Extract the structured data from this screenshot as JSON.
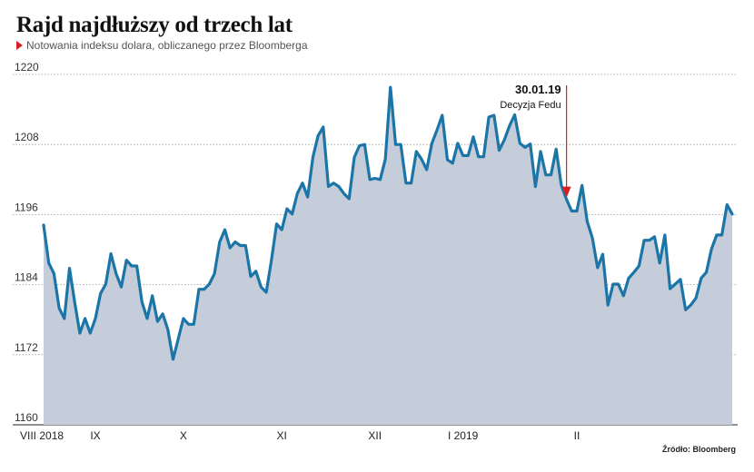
{
  "header": {
    "title": "Rajd najdłuższy od trzech lat",
    "subtitle": "Notowania indeksu dolara, obliczanego przez Bloomberga"
  },
  "source": "Źródło: Bloomberg",
  "colors": {
    "line": "#1b75a6",
    "area": "#c5ccda",
    "marker": "#d81e1e",
    "grid": "#9a9a9a"
  },
  "annotation": {
    "date": "30.01.19",
    "label": "Decyzja Fedu",
    "index": 101
  },
  "chart_data": {
    "type": "area",
    "title": "Rajd najdłuższy od trzech lat",
    "subtitle": "Notowania indeksu dolara, obliczanego przez Bloomberga",
    "ylim": [
      1160,
      1220
    ],
    "yticks": [
      1160,
      1172,
      1184,
      1196,
      1208,
      1220
    ],
    "grid": true,
    "x_ticks": [
      {
        "label": "VIII 2018",
        "index": 0
      },
      {
        "label": "IX",
        "index": 10
      },
      {
        "label": "X",
        "index": 27
      },
      {
        "label": "XI",
        "index": 46
      },
      {
        "label": "XII",
        "index": 64
      },
      {
        "label": "I 2019",
        "index": 81
      },
      {
        "label": "II",
        "index": 103
      }
    ],
    "series": [
      {
        "values": [
          1194.2,
          1187.7,
          1185.9,
          1180.0,
          1178.2,
          1186.8,
          1181.0,
          1175.7,
          1178.2,
          1175.7,
          1178.2,
          1182.5,
          1184.1,
          1189.3,
          1185.9,
          1183.6,
          1188.2,
          1187.2,
          1187.2,
          1181.0,
          1178.2,
          1182.1,
          1177.7,
          1179.0,
          1176.3,
          1171.2,
          1174.7,
          1178.2,
          1177.2,
          1177.2,
          1183.2,
          1183.2,
          1184.1,
          1185.9,
          1191.3,
          1193.4,
          1190.3,
          1191.3,
          1190.7,
          1190.7,
          1185.4,
          1186.3,
          1183.6,
          1182.7,
          1188.2,
          1194.4,
          1193.4,
          1197.0,
          1196.1,
          1199.6,
          1201.4,
          1199.0,
          1205.8,
          1209.5,
          1211.0,
          1200.8,
          1201.4,
          1200.8,
          1199.6,
          1198.7,
          1205.8,
          1207.8,
          1208.0,
          1202.0,
          1202.2,
          1202.0,
          1205.5,
          1217.8,
          1208.0,
          1208.0,
          1201.4,
          1201.4,
          1206.8,
          1205.5,
          1203.7,
          1208.2,
          1210.5,
          1213.0,
          1205.4,
          1204.8,
          1208.2,
          1206.1,
          1206.1,
          1209.3,
          1205.9,
          1205.9,
          1212.7,
          1213.0,
          1207.0,
          1208.8,
          1211.2,
          1213.1,
          1208.2,
          1207.5,
          1208.1,
          1200.8,
          1206.8,
          1202.8,
          1202.8,
          1207.2,
          1201.0,
          1198.6,
          1196.6,
          1196.6,
          1201.0,
          1194.8,
          1192.0,
          1186.9,
          1189.2,
          1180.5,
          1184.1,
          1184.1,
          1182.1,
          1185.1,
          1186.1,
          1187.2,
          1191.6,
          1191.6,
          1192.2,
          1187.7,
          1192.5,
          1183.3,
          1184.1,
          1184.9,
          1179.7,
          1180.5,
          1181.7,
          1185.1,
          1186.1,
          1190.1,
          1192.5,
          1192.5,
          1197.7,
          1196.1
        ]
      }
    ]
  }
}
